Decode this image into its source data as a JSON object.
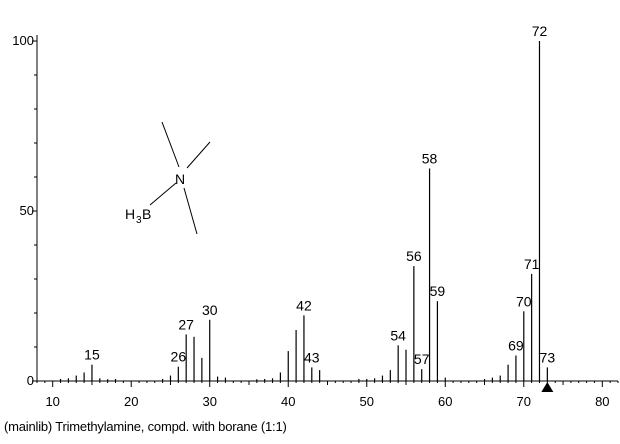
{
  "chart_data": {
    "type": "bar",
    "xlim": [
      8,
      82
    ],
    "ylim": [
      0,
      105
    ],
    "x_ticks": [
      10,
      20,
      30,
      40,
      50,
      60,
      70,
      80
    ],
    "y_ticks": [
      0,
      50,
      100
    ],
    "grid": false,
    "peaks": [
      {
        "x": 11,
        "y": 0.6
      },
      {
        "x": 12,
        "y": 0.8
      },
      {
        "x": 13,
        "y": 1.6
      },
      {
        "x": 14,
        "y": 2.5
      },
      {
        "x": 15,
        "y": 4.8,
        "label": "15"
      },
      {
        "x": 16,
        "y": 0.8
      },
      {
        "x": 17,
        "y": 0.5
      },
      {
        "x": 18,
        "y": 0.6
      },
      {
        "x": 24,
        "y": 0.6
      },
      {
        "x": 25,
        "y": 1.6
      },
      {
        "x": 26,
        "y": 4.2,
        "label": "26"
      },
      {
        "x": 27,
        "y": 13.7,
        "label": "27"
      },
      {
        "x": 28,
        "y": 13.0
      },
      {
        "x": 29,
        "y": 6.8
      },
      {
        "x": 30,
        "y": 18.0,
        "label": "30"
      },
      {
        "x": 31,
        "y": 1.3
      },
      {
        "x": 32,
        "y": 1.0
      },
      {
        "x": 36,
        "y": 0.5
      },
      {
        "x": 37,
        "y": 0.6
      },
      {
        "x": 38,
        "y": 0.8
      },
      {
        "x": 39,
        "y": 2.5
      },
      {
        "x": 40,
        "y": 8.8
      },
      {
        "x": 41,
        "y": 15.0
      },
      {
        "x": 42,
        "y": 19.3,
        "label": "42"
      },
      {
        "x": 43,
        "y": 4.0,
        "label": "43"
      },
      {
        "x": 44,
        "y": 3.2
      },
      {
        "x": 49,
        "y": 0.6
      },
      {
        "x": 50,
        "y": 0.6
      },
      {
        "x": 51,
        "y": 0.8
      },
      {
        "x": 52,
        "y": 1.6
      },
      {
        "x": 53,
        "y": 3.2
      },
      {
        "x": 54,
        "y": 10.5,
        "label": "54"
      },
      {
        "x": 55,
        "y": 9.2
      },
      {
        "x": 56,
        "y": 33.8,
        "label": "56"
      },
      {
        "x": 57,
        "y": 3.5,
        "label": "57"
      },
      {
        "x": 58,
        "y": 62.5,
        "label": "58"
      },
      {
        "x": 59,
        "y": 23.5,
        "label": "59"
      },
      {
        "x": 60,
        "y": 1.0
      },
      {
        "x": 65,
        "y": 0.6
      },
      {
        "x": 66,
        "y": 1.0
      },
      {
        "x": 67,
        "y": 1.6
      },
      {
        "x": 68,
        "y": 4.8
      },
      {
        "x": 69,
        "y": 7.5,
        "label": "69"
      },
      {
        "x": 70,
        "y": 20.5,
        "label": "70"
      },
      {
        "x": 71,
        "y": 31.5,
        "label": "71"
      },
      {
        "x": 72,
        "y": 100,
        "label": "72"
      },
      {
        "x": 73,
        "y": 4.0,
        "label": "73"
      }
    ],
    "marker_x": 73,
    "structure": {
      "atoms": [
        "N",
        "H",
        "3",
        "B"
      ]
    },
    "caption": "(mainlib) Trimethylamine, compd. with borane (1:1)"
  }
}
